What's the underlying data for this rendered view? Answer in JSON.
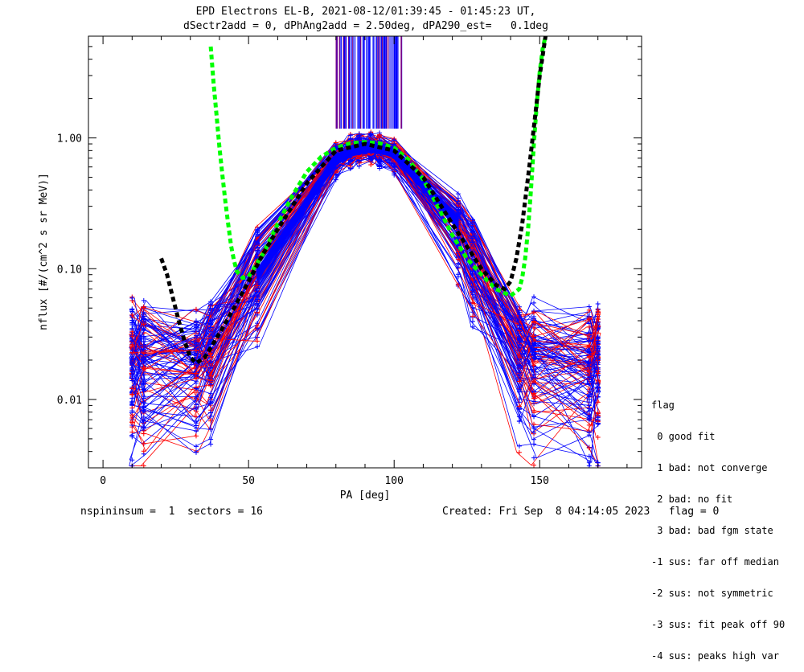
{
  "title_line1": "EPD Electrons EL-B, 2021-08-12/01:39:45 - 01:45:23 UT,",
  "title_line2": "dSectr2add = 0, dPhAng2add = 2.50deg, dPA290_est=   0.1deg",
  "footer_left": "nspininsum =  1  sectors = 16",
  "footer_right": "Created: Fri Sep  8 04:14:05 2023   flag = 0",
  "legend": {
    "title": "flag",
    "entries": [
      " 0 good fit",
      " 1 bad: not converge",
      " 2 bad: no fit",
      " 3 bad: bad fgm state",
      "-1 sus: far off median",
      "-2 sus: not symmetric",
      "-3 sus: fit peak off 90",
      "-4 sus: peaks high var"
    ]
  },
  "chart_data": {
    "type": "line",
    "xlabel": "PA [deg]",
    "ylabel": "nflux [#/(cm^2 s sr MeV)]",
    "xlim": [
      -5,
      185
    ],
    "ylim": [
      0.003,
      6.0
    ],
    "yscale": "log",
    "x_ticks": [
      0,
      50,
      100,
      150
    ],
    "y_ticks": [
      0.01,
      0.1,
      1.0
    ],
    "y_tick_labels": [
      "0.01",
      "0.10",
      "1.00"
    ],
    "sector_pa": [
      10,
      14,
      32,
      37,
      53,
      80,
      85,
      88,
      92,
      95,
      100,
      122,
      127,
      143,
      148,
      167,
      170
    ],
    "colors": {
      "good": "#0000ff",
      "suspect": "#ff0000",
      "median_fit": "#00ff00",
      "alt_fit": "#000000",
      "peak_marks": "#800080"
    },
    "series": [
      {
        "kind": "median-fit",
        "x": [
          37,
          38,
          39,
          40,
          41,
          42,
          43,
          44,
          45,
          46,
          48,
          50,
          55,
          60,
          65,
          70,
          75,
          80,
          85,
          90,
          95,
          100,
          105,
          110,
          115,
          120,
          125,
          130,
          135,
          140,
          143,
          144,
          145,
          146,
          147,
          148,
          149,
          150,
          151,
          152
        ],
        "y": [
          5.0,
          2.6,
          1.5,
          0.85,
          0.52,
          0.33,
          0.22,
          0.15,
          0.115,
          0.095,
          0.085,
          0.087,
          0.13,
          0.22,
          0.36,
          0.55,
          0.72,
          0.84,
          0.91,
          0.93,
          0.91,
          0.84,
          0.68,
          0.48,
          0.3,
          0.18,
          0.12,
          0.09,
          0.07,
          0.062,
          0.07,
          0.085,
          0.12,
          0.2,
          0.4,
          0.9,
          1.8,
          3.2,
          4.8,
          6.0
        ]
      },
      {
        "kind": "alt-fit",
        "x": [
          20,
          22,
          24,
          26,
          28,
          30,
          32,
          35,
          40,
          45,
          50,
          55,
          60,
          70,
          80,
          90,
          100,
          110,
          120,
          130,
          135,
          138,
          140,
          142,
          144,
          146,
          148,
          150,
          152
        ],
        "y": [
          0.12,
          0.09,
          0.06,
          0.04,
          0.028,
          0.021,
          0.019,
          0.021,
          0.032,
          0.05,
          0.08,
          0.13,
          0.2,
          0.45,
          0.8,
          0.9,
          0.8,
          0.5,
          0.22,
          0.1,
          0.075,
          0.07,
          0.08,
          0.12,
          0.22,
          0.5,
          1.2,
          3.0,
          6.0
        ]
      }
    ]
  }
}
